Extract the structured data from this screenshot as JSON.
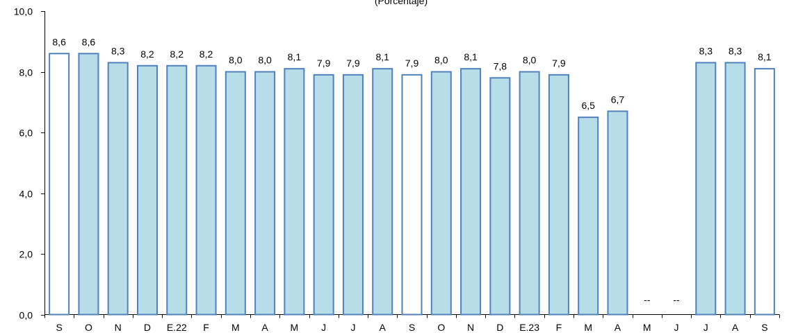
{
  "chart_data": {
    "type": "bar",
    "title": "(Porcentaje)",
    "xlabel": "",
    "ylabel": "",
    "ylim": [
      0,
      10
    ],
    "yticks": [
      "0,0",
      "2,0",
      "4,0",
      "6,0",
      "8,0",
      "10,0"
    ],
    "grid": false,
    "legend": "none",
    "categories": [
      "S",
      "O",
      "N",
      "D",
      "E.22",
      "F",
      "M",
      "A",
      "M",
      "J",
      "J",
      "A",
      "S",
      "O",
      "N",
      "D",
      "E.23",
      "F",
      "M",
      "A",
      "M",
      "J",
      "J",
      "A",
      "S"
    ],
    "values": [
      8.6,
      8.6,
      8.3,
      8.2,
      8.2,
      8.2,
      8.0,
      8.0,
      8.1,
      7.9,
      7.9,
      8.1,
      7.9,
      8.0,
      8.1,
      7.8,
      8.0,
      7.9,
      6.5,
      6.7,
      null,
      null,
      8.3,
      8.3,
      8.1
    ],
    "data_labels": [
      "8,6",
      "8,6",
      "8,3",
      "8,2",
      "8,2",
      "8,2",
      "8,0",
      "8,0",
      "8,1",
      "7,9",
      "7,9",
      "8,1",
      "7,9",
      "8,0",
      "8,1",
      "7,8",
      "8,0",
      "7,9",
      "6,5",
      "6,7",
      "--",
      "--",
      "8,3",
      "8,3",
      "8,1"
    ],
    "highlighted": [
      true,
      false,
      false,
      false,
      false,
      false,
      false,
      false,
      false,
      false,
      false,
      false,
      true,
      false,
      false,
      false,
      false,
      false,
      false,
      false,
      false,
      false,
      false,
      false,
      true
    ],
    "colors": {
      "bar_fill": "#b7dde8",
      "highlight_fill": "#ffffff",
      "bar_stroke": "#4f81bd",
      "axis": "#000000",
      "text": "#000000"
    }
  }
}
